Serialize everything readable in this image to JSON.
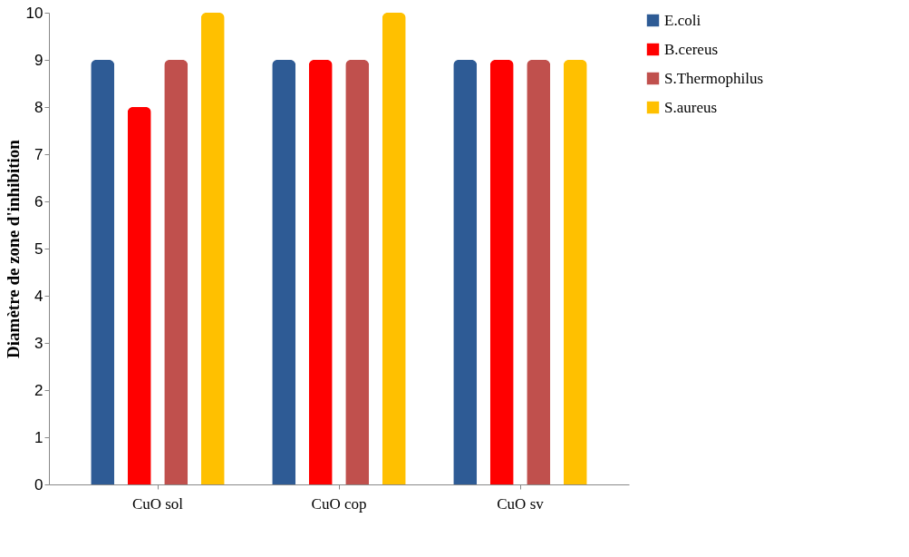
{
  "chart_data": {
    "type": "bar",
    "ylabel": "Diamètre de zone d'inhibition",
    "categories": [
      "CuO sol",
      "CuO cop",
      "CuO sv"
    ],
    "series": [
      {
        "name": "E.coli",
        "color": "#2e5b95",
        "values": [
          9,
          9,
          9
        ]
      },
      {
        "name": "B.cereus",
        "color": "#ff0000",
        "values": [
          8,
          9,
          9
        ]
      },
      {
        "name": "S.Thermophilus",
        "color": "#c0504d",
        "values": [
          9,
          9,
          9
        ]
      },
      {
        "name": "S.aureus",
        "color": "#ffc000",
        "values": [
          10,
          10,
          9
        ]
      }
    ],
    "ylim": [
      0,
      10
    ],
    "yticks": [
      0,
      1,
      2,
      3,
      4,
      5,
      6,
      7,
      8,
      9,
      10
    ],
    "grid": false,
    "legend": "right"
  }
}
